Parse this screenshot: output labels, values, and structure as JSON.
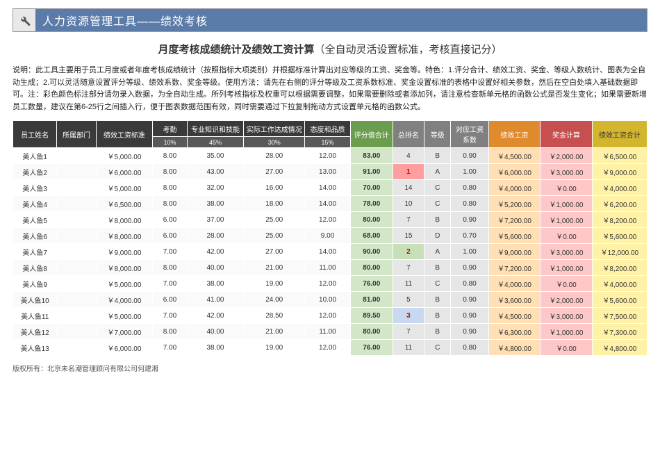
{
  "titleBar": {
    "text": "人力资源管理工具——绩效考核"
  },
  "heading": {
    "bold": "月度考核成绩统计及绩效工资计算",
    "sub": "（全自动灵活设置标准，考核直接记分）"
  },
  "description": "说明：此工具主要用于员工月度或者年度考核成绩统计（按照指标大项类别）并根据标准计算出对应等级的工资、奖金等。特色：1.评分合计、绩效工资、奖金、等级人数统计、图表为全自动生成；2.可以灵活随意设置评分等级、绩效系数、奖金等级。使用方法：请先在右侧的评分等级及工资系数标准、奖金设置标准的表格中设置好相关参数，然后在空白处填入基础数据即可。注：彩色颜色标注部分请勿录入数据，为全自动生成。所列考核指标及权重可以根据需要调整，如果需要删除或者添加列，请注意检查新单元格的函数公式是否发生变化；如果需要新增员工数量，建议在第6-25行之间插入行，便于图表数据范围有效，同时需要通过下拉复制拖动方式设置单元格的函数公式。",
  "columns": {
    "name": "员工姓名",
    "dept": "所属部门",
    "base": "绩效工资标准",
    "c1": "考勤",
    "c2": "专业知识和技能",
    "c3": "实际工作达成情况",
    "c4": "态度和品质",
    "score": "评分值合计",
    "rank": "总排名",
    "grade": "等级",
    "coeff": "对应工资系数",
    "perf": "绩效工资",
    "bonus": "奖金计算",
    "total": "绩效工资合计"
  },
  "weights": {
    "c1": "10%",
    "c2": "45%",
    "c3": "30%",
    "c4": "15%"
  },
  "rows": [
    {
      "name": "美人鱼1",
      "dept": "",
      "base": "￥5,000.00",
      "c1": "8.00",
      "c2": "35.00",
      "c3": "28.00",
      "c4": "12.00",
      "score": "83.00",
      "rank": "4",
      "grade": "B",
      "coeff": "0.90",
      "perf": "￥4,500.00",
      "bonus": "￥2,000.00",
      "total": "￥6,500.00",
      "rankHi": ""
    },
    {
      "name": "美人鱼2",
      "dept": "",
      "base": "￥6,000.00",
      "c1": "8.00",
      "c2": "43.00",
      "c3": "27.00",
      "c4": "13.00",
      "score": "91.00",
      "rank": "1",
      "grade": "A",
      "coeff": "1.00",
      "perf": "￥6,000.00",
      "bonus": "￥3,000.00",
      "total": "￥9,000.00",
      "rankHi": "rank-1"
    },
    {
      "name": "美人鱼3",
      "dept": "",
      "base": "￥5,000.00",
      "c1": "8.00",
      "c2": "32.00",
      "c3": "16.00",
      "c4": "14.00",
      "score": "70.00",
      "rank": "14",
      "grade": "C",
      "coeff": "0.80",
      "perf": "￥4,000.00",
      "bonus": "￥0.00",
      "total": "￥4,000.00",
      "rankHi": ""
    },
    {
      "name": "美人鱼4",
      "dept": "",
      "base": "￥6,500.00",
      "c1": "8.00",
      "c2": "38.00",
      "c3": "18.00",
      "c4": "14.00",
      "score": "78.00",
      "rank": "10",
      "grade": "C",
      "coeff": "0.80",
      "perf": "￥5,200.00",
      "bonus": "￥1,000.00",
      "total": "￥6,200.00",
      "rankHi": ""
    },
    {
      "name": "美人鱼5",
      "dept": "",
      "base": "￥8,000.00",
      "c1": "6.00",
      "c2": "37.00",
      "c3": "25.00",
      "c4": "12.00",
      "score": "80.00",
      "rank": "7",
      "grade": "B",
      "coeff": "0.90",
      "perf": "￥7,200.00",
      "bonus": "￥1,000.00",
      "total": "￥8,200.00",
      "rankHi": ""
    },
    {
      "name": "美人鱼6",
      "dept": "",
      "base": "￥8,000.00",
      "c1": "6.00",
      "c2": "28.00",
      "c3": "25.00",
      "c4": "9.00",
      "score": "68.00",
      "rank": "15",
      "grade": "D",
      "coeff": "0.70",
      "perf": "￥5,600.00",
      "bonus": "￥0.00",
      "total": "￥5,600.00",
      "rankHi": ""
    },
    {
      "name": "美人鱼7",
      "dept": "",
      "base": "￥9,000.00",
      "c1": "7.00",
      "c2": "42.00",
      "c3": "27.00",
      "c4": "14.00",
      "score": "90.00",
      "rank": "2",
      "grade": "A",
      "coeff": "1.00",
      "perf": "￥9,000.00",
      "bonus": "￥3,000.00",
      "total": "￥12,000.00",
      "rankHi": "rank-2"
    },
    {
      "name": "美人鱼8",
      "dept": "",
      "base": "￥8,000.00",
      "c1": "8.00",
      "c2": "40.00",
      "c3": "21.00",
      "c4": "11.00",
      "score": "80.00",
      "rank": "7",
      "grade": "B",
      "coeff": "0.90",
      "perf": "￥7,200.00",
      "bonus": "￥1,000.00",
      "total": "￥8,200.00",
      "rankHi": ""
    },
    {
      "name": "美人鱼9",
      "dept": "",
      "base": "￥5,000.00",
      "c1": "7.00",
      "c2": "38.00",
      "c3": "19.00",
      "c4": "12.00",
      "score": "76.00",
      "rank": "11",
      "grade": "C",
      "coeff": "0.80",
      "perf": "￥4,000.00",
      "bonus": "￥0.00",
      "total": "￥4,000.00",
      "rankHi": ""
    },
    {
      "name": "美人鱼10",
      "dept": "",
      "base": "￥4,000.00",
      "c1": "6.00",
      "c2": "41.00",
      "c3": "24.00",
      "c4": "10.00",
      "score": "81.00",
      "rank": "5",
      "grade": "B",
      "coeff": "0.90",
      "perf": "￥3,600.00",
      "bonus": "￥2,000.00",
      "total": "￥5,600.00",
      "rankHi": ""
    },
    {
      "name": "美人鱼11",
      "dept": "",
      "base": "￥5,000.00",
      "c1": "7.00",
      "c2": "42.00",
      "c3": "28.50",
      "c4": "12.00",
      "score": "89.50",
      "rank": "3",
      "grade": "B",
      "coeff": "0.90",
      "perf": "￥4,500.00",
      "bonus": "￥3,000.00",
      "total": "￥7,500.00",
      "rankHi": "rank-3"
    },
    {
      "name": "美人鱼12",
      "dept": "",
      "base": "￥7,000.00",
      "c1": "8.00",
      "c2": "40.00",
      "c3": "21.00",
      "c4": "11.00",
      "score": "80.00",
      "rank": "7",
      "grade": "B",
      "coeff": "0.90",
      "perf": "￥6,300.00",
      "bonus": "￥1,000.00",
      "total": "￥7,300.00",
      "rankHi": ""
    },
    {
      "name": "美人鱼13",
      "dept": "",
      "base": "￥6,000.00",
      "c1": "7.00",
      "c2": "38.00",
      "c3": "19.00",
      "c4": "12.00",
      "score": "76.00",
      "rank": "11",
      "grade": "C",
      "coeff": "0.80",
      "perf": "￥4,800.00",
      "bonus": "￥0.00",
      "total": "￥4,800.00",
      "rankHi": ""
    }
  ],
  "footer": "版权所有：北京未名潮管理顾问有限公司何建湘",
  "colors": {
    "titleBar": "#5b7ba8",
    "scoreHdr": "#6a9e4e",
    "perfHdr": "#e08a2e",
    "bonusHdr": "#c74f4f",
    "totalHdr": "#d4b62e",
    "scoreCell": "#d4e6c8",
    "perfCell": "#ffdfb3",
    "bonusCell": "#ffc8c8",
    "totalCell": "#fff2a6",
    "greyCell": "#e6e6e6"
  },
  "colWidths": [
    "56",
    "50",
    "72",
    "44",
    "72",
    "78",
    "58",
    "54",
    "40",
    "34",
    "48",
    "66",
    "66",
    "70"
  ]
}
